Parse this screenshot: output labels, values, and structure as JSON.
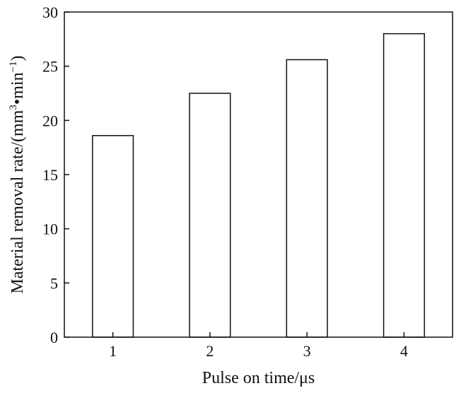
{
  "chart_data": {
    "type": "bar",
    "categories": [
      "1",
      "2",
      "3",
      "4"
    ],
    "values": [
      18.6,
      22.5,
      25.6,
      28.0
    ],
    "xlabel": "Pulse on time/μs",
    "ylabel": {
      "text": "Material removal rate/(mm",
      "exp1": "3",
      "mid": "•min",
      "exp2": "−1",
      "end": ")"
    },
    "ylim": [
      0,
      30
    ],
    "yticks": [
      "0",
      "5",
      "10",
      "15",
      "20",
      "25",
      "30"
    ],
    "grid": false,
    "legend": "none",
    "colors": {
      "bar_fill": "#ffffff",
      "bar_stroke": "#111111",
      "axis": "#111111"
    }
  }
}
